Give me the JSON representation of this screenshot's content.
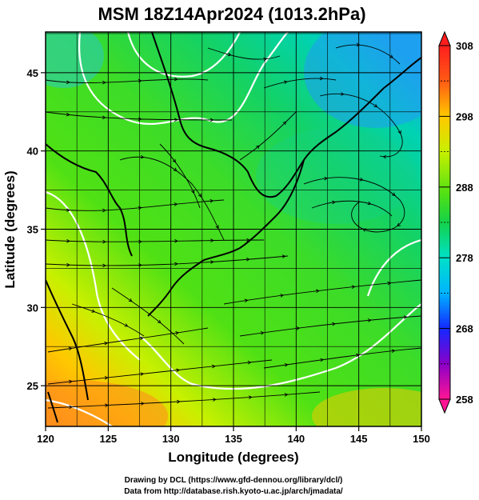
{
  "title": "MSM 18Z14Apr2024 (1013.2hPa)",
  "axes": {
    "xlabel": "Longitude (degrees)",
    "ylabel": "Latitude  (degrees)",
    "xticks": [
      "120",
      "125",
      "130",
      "135",
      "140",
      "145",
      "150"
    ],
    "yticks": [
      "25",
      "30",
      "35",
      "40",
      "45"
    ],
    "xlim": [
      120,
      150
    ],
    "ylim": [
      22.4,
      47.6
    ]
  },
  "colorbar": {
    "labels": [
      "308",
      "298",
      "288",
      "278",
      "268",
      "258"
    ],
    "range": [
      258,
      308
    ],
    "colors": [
      "#ff1493",
      "#8b00c8",
      "#1428ff",
      "#00b4ff",
      "#00e0c8",
      "#14d24a",
      "#50e114",
      "#c8f000",
      "#ffc800",
      "#ff5a14",
      "#ff1e1e"
    ]
  },
  "credits": {
    "line1": "Drawing by DCL (https://www.gfd-dennou.org/library/dcl/)",
    "line2": "Data from http://database.rish.kyoto-u.ac.jp/arch/jmadata/"
  }
}
